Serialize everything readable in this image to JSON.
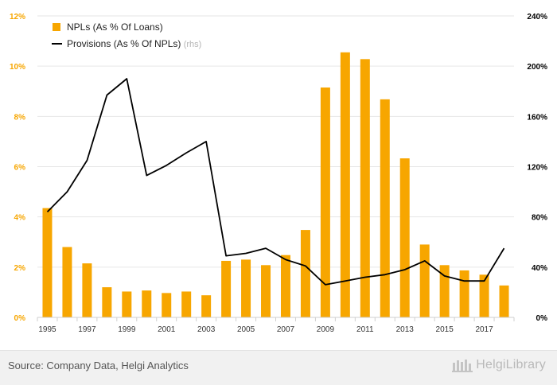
{
  "chart_data": {
    "type": "bar",
    "years": [
      1995,
      1996,
      1997,
      1998,
      1999,
      2000,
      2001,
      2002,
      2003,
      2004,
      2005,
      2006,
      2007,
      2008,
      2009,
      2010,
      2011,
      2012,
      2013,
      2014,
      2015,
      2016,
      2017,
      2018
    ],
    "x_tick_labels": [
      "1995",
      "1997",
      "1999",
      "2001",
      "2003",
      "2005",
      "2007",
      "2009",
      "2011",
      "2013",
      "2015",
      "2017"
    ],
    "series": [
      {
        "name": "NPLs (As % Of Loans)",
        "type": "bar",
        "axis": "left",
        "color": "#f7a600",
        "values": [
          4.35,
          2.8,
          2.15,
          1.2,
          1.03,
          1.07,
          0.97,
          1.03,
          0.88,
          2.25,
          2.3,
          2.08,
          2.48,
          3.48,
          9.15,
          10.55,
          10.28,
          8.68,
          6.33,
          2.9,
          2.08,
          1.87,
          1.7,
          1.27
        ]
      },
      {
        "name": "Provisions (As % Of NPLs)",
        "type": "line",
        "axis": "right",
        "color": "#000000",
        "values": [
          84,
          100,
          125,
          177,
          190,
          113,
          121,
          131,
          140,
          49,
          51,
          55,
          46,
          41,
          26,
          29,
          32,
          34,
          38,
          45,
          33,
          29,
          29,
          55
        ]
      }
    ],
    "legend": {
      "bar_label": "NPLs (As % Of Loans)",
      "line_label": "Provisions (As % Of NPLs)",
      "line_suffix": "(rhs)",
      "position": "top-left"
    },
    "y_left": {
      "min": 0,
      "max": 12,
      "ticks": [
        "0%",
        "2%",
        "4%",
        "6%",
        "8%",
        "10%",
        "12%"
      ],
      "color": "#f7a600"
    },
    "y_right": {
      "min": 0,
      "max": 240,
      "ticks": [
        "0%",
        "40%",
        "80%",
        "120%",
        "160%",
        "200%",
        "240%"
      ]
    },
    "grid": true
  },
  "footer": {
    "source": "Source: Company Data, Helgi Analytics",
    "brand": "HelgiLibrary"
  }
}
